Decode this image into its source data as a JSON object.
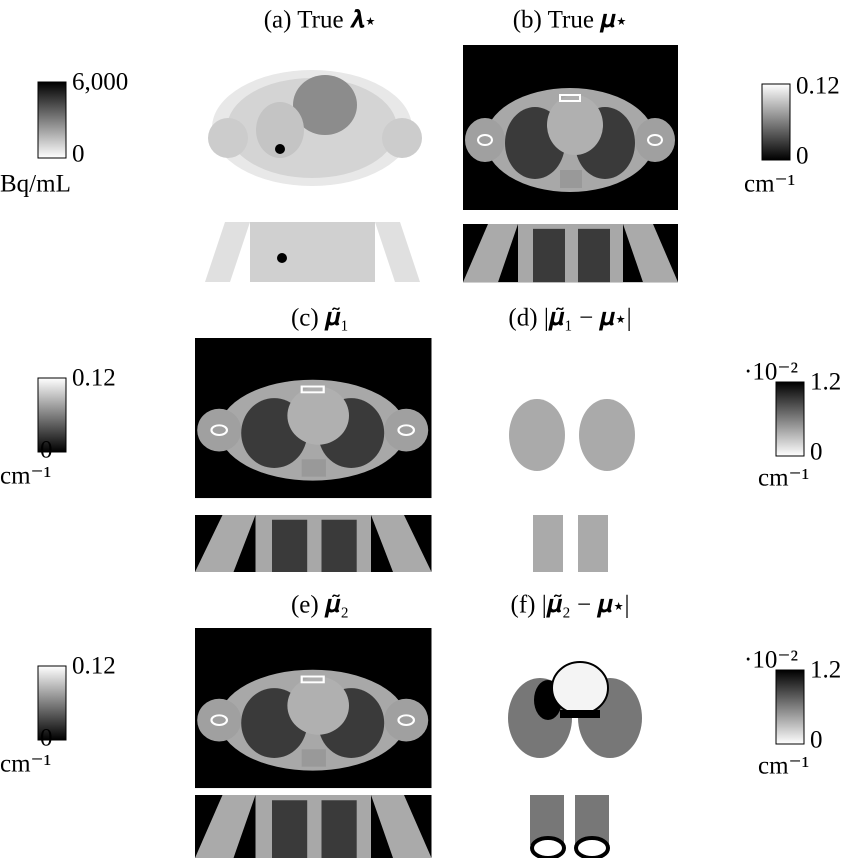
{
  "panels": [
    {
      "title": "(a) True 𝝀⋆"
    },
    {
      "title": "(b) True 𝝁⋆"
    },
    {
      "title": "(c) 𝝁̃₁"
    },
    {
      "title": "(d) |𝝁̃₁ − 𝝁⋆|"
    },
    {
      "title": "(e) 𝝁̃₂"
    },
    {
      "title": "(f) |𝝁̃₂ − 𝝁⋆|"
    }
  ],
  "colorbars": [
    {
      "max": "6,000",
      "min": "0",
      "unit": "Bq/mL"
    },
    {
      "max": "0.12",
      "min": "0",
      "unit": "cm⁻¹"
    },
    {
      "max": "0.12",
      "min": "0",
      "unit": "cm⁻¹"
    },
    {
      "scale": "·10⁻²",
      "max": "1.2",
      "min": "0",
      "unit": "cm⁻¹"
    },
    {
      "max": "0.12",
      "min": "0",
      "unit": "cm⁻¹"
    },
    {
      "scale": "·10⁻²",
      "max": "1.2",
      "min": "0",
      "unit": "cm⁻¹"
    }
  ]
}
